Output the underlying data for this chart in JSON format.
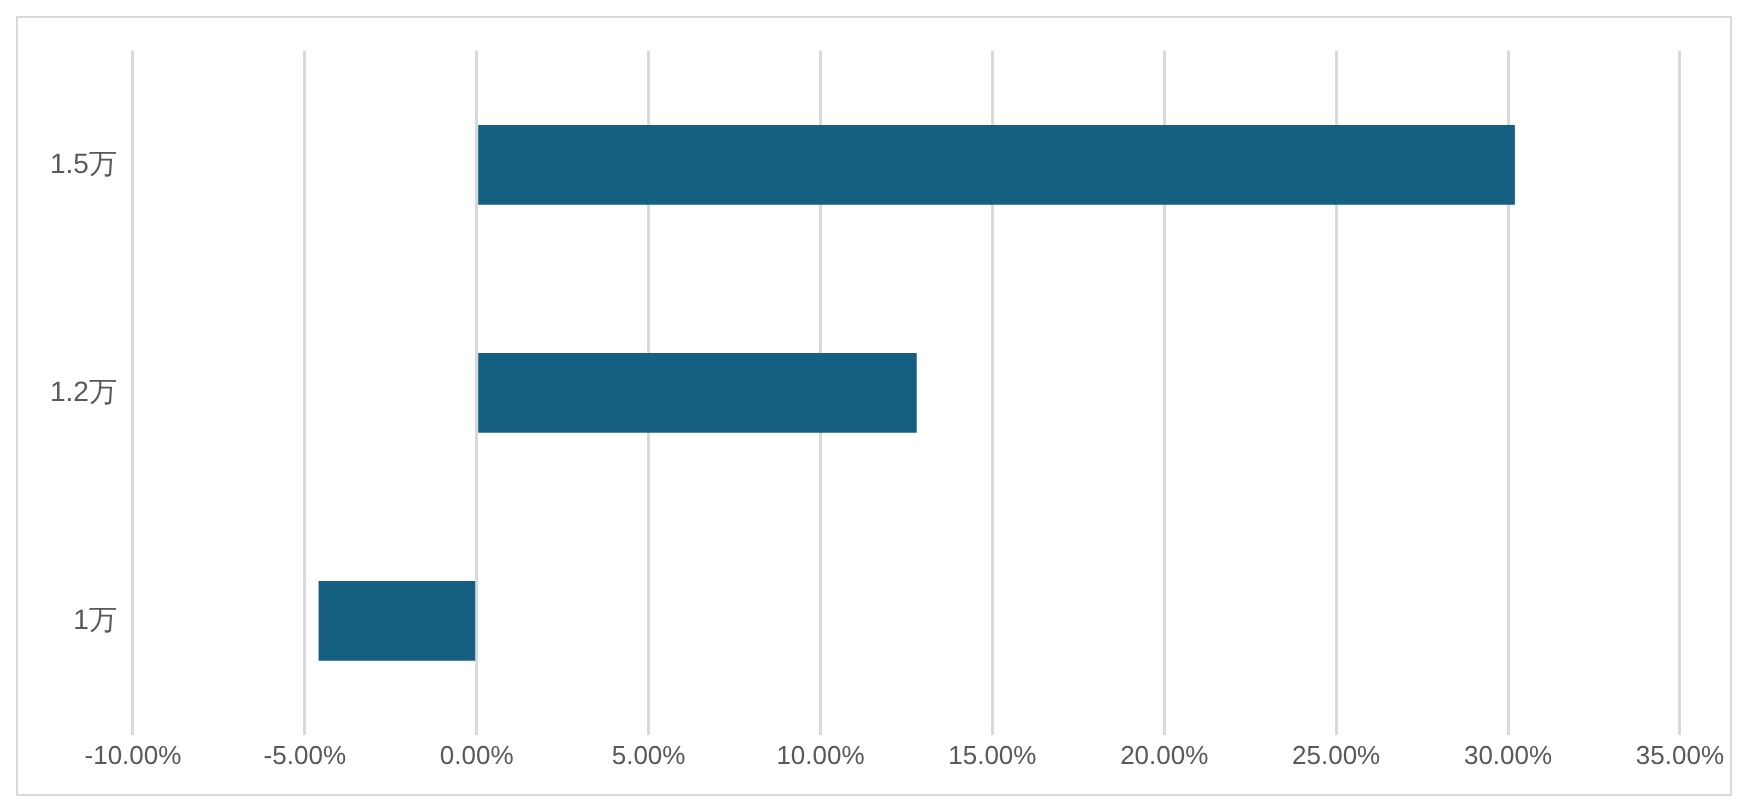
{
  "chart_data": {
    "type": "bar",
    "orientation": "horizontal",
    "categories": [
      "1.5万",
      "1.2万",
      "1万"
    ],
    "series": [
      {
        "color": "#156082",
        "values": [
          30.2,
          12.8,
          -4.6
        ]
      }
    ],
    "xlim": [
      -10,
      35
    ],
    "xticks": [
      {
        "value": -10,
        "label": "-10.00%"
      },
      {
        "value": -5,
        "label": "-5.00%"
      },
      {
        "value": 0,
        "label": "0.00%"
      },
      {
        "value": 5,
        "label": "5.00%"
      },
      {
        "value": 10,
        "label": "10.00%"
      },
      {
        "value": 15,
        "label": "15.00%"
      },
      {
        "value": 20,
        "label": "20.00%"
      },
      {
        "value": 25,
        "label": "25.00%"
      },
      {
        "value": 30,
        "label": "30.00%"
      },
      {
        "value": 35,
        "label": "35.00%"
      }
    ],
    "grid": "x",
    "legend": false
  }
}
